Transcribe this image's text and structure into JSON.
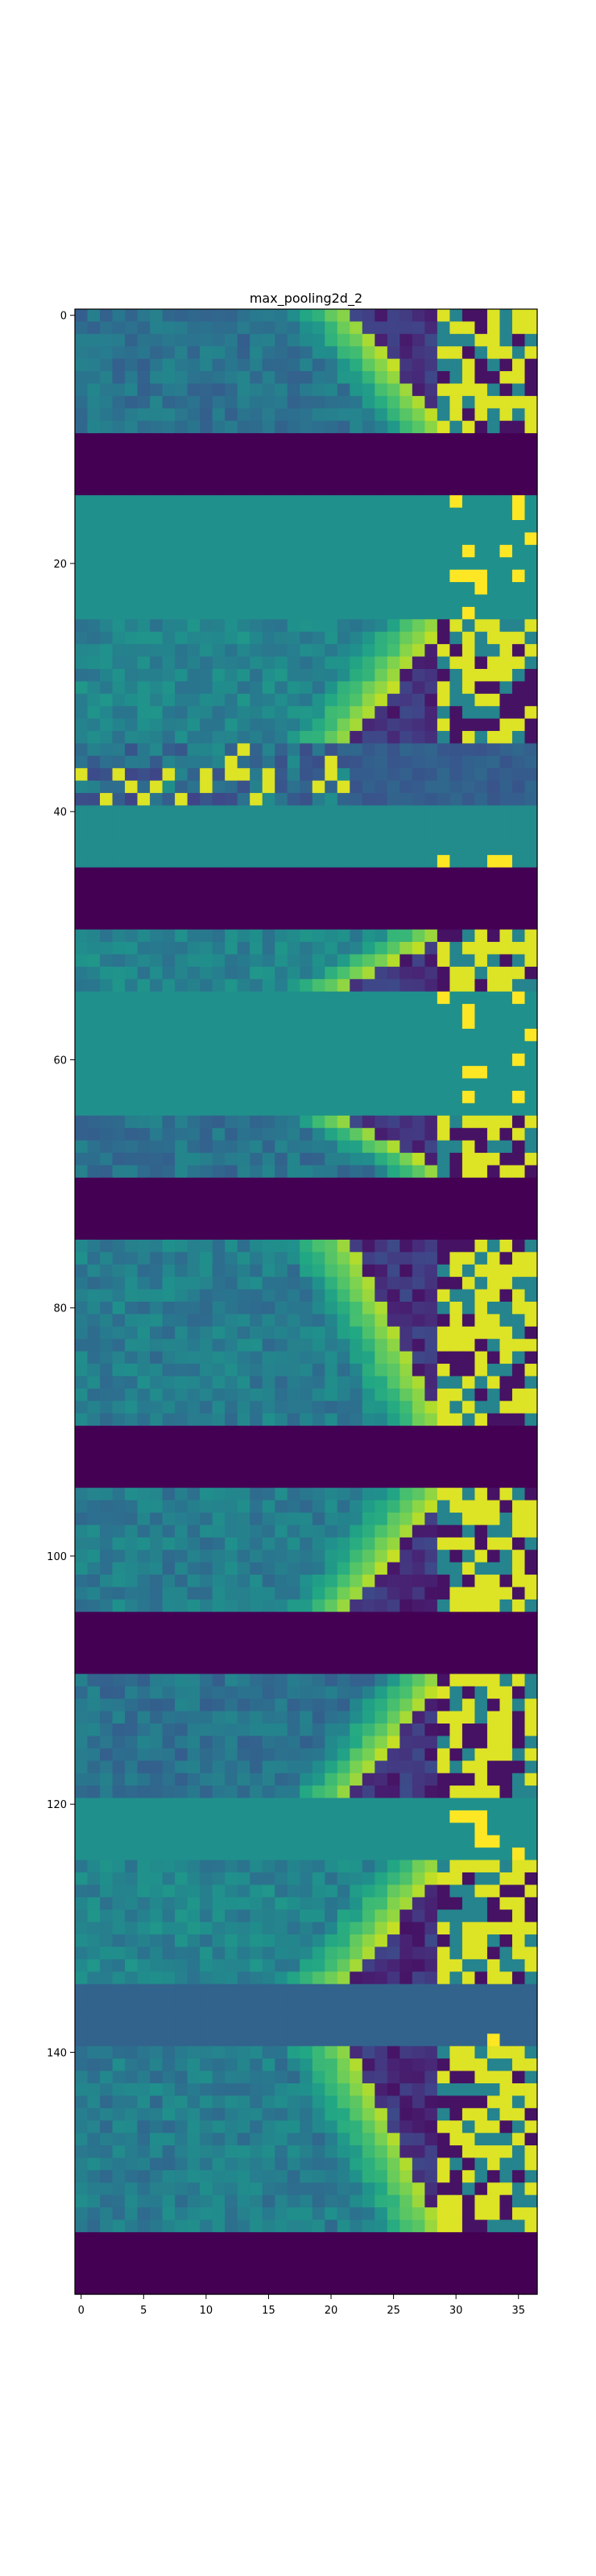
{
  "chart_data": {
    "type": "heatmap",
    "title": "max_pooling2d_2",
    "xlabel": "",
    "ylabel": "",
    "columns": 37,
    "rows": 160,
    "xlim": [
      -0.5,
      36.5
    ],
    "ylim": [
      159.5,
      -0.5
    ],
    "xticks": [
      0,
      5,
      10,
      15,
      20,
      25,
      30,
      35
    ],
    "yticks": [
      0,
      20,
      40,
      60,
      80,
      100,
      120,
      140
    ],
    "colormap": "viridis",
    "vmin": 0,
    "vmax": 1,
    "colorbar": false,
    "bands": [
      {
        "start": 0,
        "end": 9,
        "kind": "fan",
        "level": 0.38,
        "dir": 1
      },
      {
        "start": 10,
        "end": 14,
        "kind": "zero"
      },
      {
        "start": 15,
        "end": 24,
        "kind": "flat",
        "level": 0.5
      },
      {
        "start": 25,
        "end": 34,
        "kind": "fan",
        "level": 0.45,
        "dir": -1
      },
      {
        "start": 35,
        "end": 39,
        "kind": "speckle",
        "level": 0.35
      },
      {
        "start": 40,
        "end": 44,
        "kind": "flat",
        "level": 0.48
      },
      {
        "start": 45,
        "end": 49,
        "kind": "zero"
      },
      {
        "start": 50,
        "end": 54,
        "kind": "fan",
        "level": 0.45,
        "dir": -1
      },
      {
        "start": 55,
        "end": 64,
        "kind": "flat",
        "level": 0.5
      },
      {
        "start": 65,
        "end": 69,
        "kind": "fan",
        "level": 0.38,
        "dir": 1
      },
      {
        "start": 70,
        "end": 74,
        "kind": "zero"
      },
      {
        "start": 75,
        "end": 89,
        "kind": "fan",
        "level": 0.42,
        "dir": 1
      },
      {
        "start": 90,
        "end": 94,
        "kind": "zero"
      },
      {
        "start": 95,
        "end": 104,
        "kind": "fan",
        "level": 0.42,
        "dir": -1
      },
      {
        "start": 105,
        "end": 109,
        "kind": "zero"
      },
      {
        "start": 110,
        "end": 119,
        "kind": "fan",
        "level": 0.38,
        "dir": -1
      },
      {
        "start": 120,
        "end": 124,
        "kind": "flat",
        "level": 0.5
      },
      {
        "start": 125,
        "end": 134,
        "kind": "fan",
        "level": 0.45,
        "dir": -1
      },
      {
        "start": 135,
        "end": 139,
        "kind": "flat",
        "level": 0.32
      },
      {
        "start": 140,
        "end": 154,
        "kind": "fan",
        "level": 0.42,
        "dir": 1
      },
      {
        "start": 155,
        "end": 159,
        "kind": "zero"
      }
    ]
  }
}
